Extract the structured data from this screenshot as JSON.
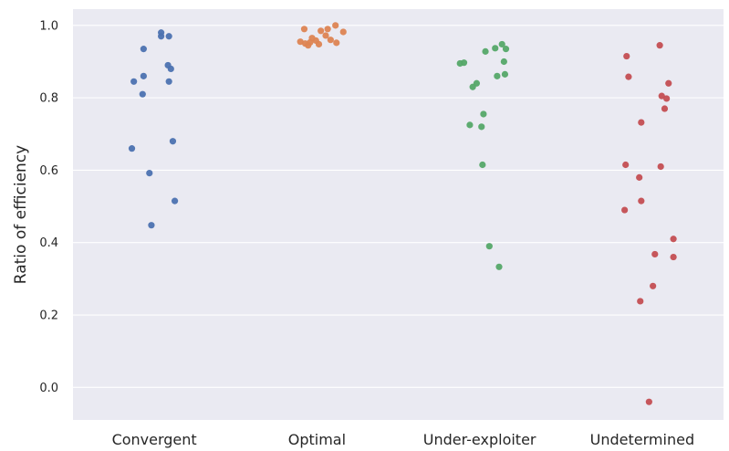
{
  "chart_data": {
    "type": "scatter",
    "title": "",
    "xlabel": "",
    "ylabel": "Ratio of efficiency",
    "ylim": [
      -0.09,
      1.045
    ],
    "yticks": [
      0.0,
      0.2,
      0.4,
      0.6,
      0.8,
      1.0
    ],
    "ytick_labels": [
      "0.0",
      "0.2",
      "0.4",
      "0.6",
      "0.8",
      "1.0"
    ],
    "grid": true,
    "legend": "none",
    "categories": [
      "Convergent",
      "Optimal",
      "Under-exploiter",
      "Undetermined"
    ],
    "colors": [
      "#4c72b0",
      "#dd8452",
      "#55a868",
      "#c44e52"
    ],
    "series": [
      {
        "category": "Convergent",
        "points": [
          {
            "jitter": 0.07,
            "y": 0.98
          },
          {
            "jitter": 0.07,
            "y": 0.97
          },
          {
            "jitter": 0.15,
            "y": 0.97
          },
          {
            "jitter": -0.11,
            "y": 0.935
          },
          {
            "jitter": 0.14,
            "y": 0.89
          },
          {
            "jitter": 0.17,
            "y": 0.88
          },
          {
            "jitter": -0.11,
            "y": 0.86
          },
          {
            "jitter": -0.21,
            "y": 0.845
          },
          {
            "jitter": 0.15,
            "y": 0.845
          },
          {
            "jitter": -0.12,
            "y": 0.81
          },
          {
            "jitter": 0.19,
            "y": 0.68
          },
          {
            "jitter": -0.23,
            "y": 0.66
          },
          {
            "jitter": -0.05,
            "y": 0.592
          },
          {
            "jitter": 0.21,
            "y": 0.515
          },
          {
            "jitter": -0.03,
            "y": 0.448
          }
        ]
      },
      {
        "category": "Optimal",
        "points": [
          {
            "jitter": 0.19,
            "y": 1.0
          },
          {
            "jitter": -0.13,
            "y": 0.99
          },
          {
            "jitter": 0.11,
            "y": 0.99
          },
          {
            "jitter": 0.04,
            "y": 0.985
          },
          {
            "jitter": 0.27,
            "y": 0.982
          },
          {
            "jitter": 0.09,
            "y": 0.972
          },
          {
            "jitter": -0.05,
            "y": 0.965
          },
          {
            "jitter": 0.14,
            "y": 0.96
          },
          {
            "jitter": -0.01,
            "y": 0.958
          },
          {
            "jitter": -0.17,
            "y": 0.955
          },
          {
            "jitter": -0.07,
            "y": 0.953
          },
          {
            "jitter": 0.2,
            "y": 0.952
          },
          {
            "jitter": -0.12,
            "y": 0.95
          },
          {
            "jitter": 0.02,
            "y": 0.948
          },
          {
            "jitter": -0.09,
            "y": 0.945
          }
        ]
      },
      {
        "category": "Under-exploiter",
        "points": [
          {
            "jitter": 0.23,
            "y": 0.948
          },
          {
            "jitter": 0.16,
            "y": 0.937
          },
          {
            "jitter": 0.27,
            "y": 0.935
          },
          {
            "jitter": 0.06,
            "y": 0.928
          },
          {
            "jitter": 0.25,
            "y": 0.9
          },
          {
            "jitter": -0.2,
            "y": 0.895
          },
          {
            "jitter": -0.16,
            "y": 0.897
          },
          {
            "jitter": 0.26,
            "y": 0.865
          },
          {
            "jitter": 0.18,
            "y": 0.86
          },
          {
            "jitter": -0.03,
            "y": 0.84
          },
          {
            "jitter": -0.07,
            "y": 0.83
          },
          {
            "jitter": 0.04,
            "y": 0.755
          },
          {
            "jitter": -0.1,
            "y": 0.725
          },
          {
            "jitter": 0.02,
            "y": 0.72
          },
          {
            "jitter": 0.03,
            "y": 0.615
          },
          {
            "jitter": 0.1,
            "y": 0.39
          },
          {
            "jitter": 0.2,
            "y": 0.333
          }
        ]
      },
      {
        "category": "Undetermined",
        "points": [
          {
            "jitter": 0.18,
            "y": 0.945
          },
          {
            "jitter": -0.16,
            "y": 0.915
          },
          {
            "jitter": -0.14,
            "y": 0.858
          },
          {
            "jitter": 0.27,
            "y": 0.84
          },
          {
            "jitter": 0.2,
            "y": 0.805
          },
          {
            "jitter": 0.25,
            "y": 0.798
          },
          {
            "jitter": 0.23,
            "y": 0.77
          },
          {
            "jitter": -0.01,
            "y": 0.732
          },
          {
            "jitter": -0.17,
            "y": 0.615
          },
          {
            "jitter": 0.19,
            "y": 0.61
          },
          {
            "jitter": -0.03,
            "y": 0.58
          },
          {
            "jitter": -0.01,
            "y": 0.515
          },
          {
            "jitter": -0.18,
            "y": 0.49
          },
          {
            "jitter": 0.32,
            "y": 0.41
          },
          {
            "jitter": 0.13,
            "y": 0.368
          },
          {
            "jitter": 0.32,
            "y": 0.36
          },
          {
            "jitter": 0.11,
            "y": 0.28
          },
          {
            "jitter": -0.02,
            "y": 0.238
          },
          {
            "jitter": 0.07,
            "y": -0.04
          }
        ]
      }
    ]
  }
}
